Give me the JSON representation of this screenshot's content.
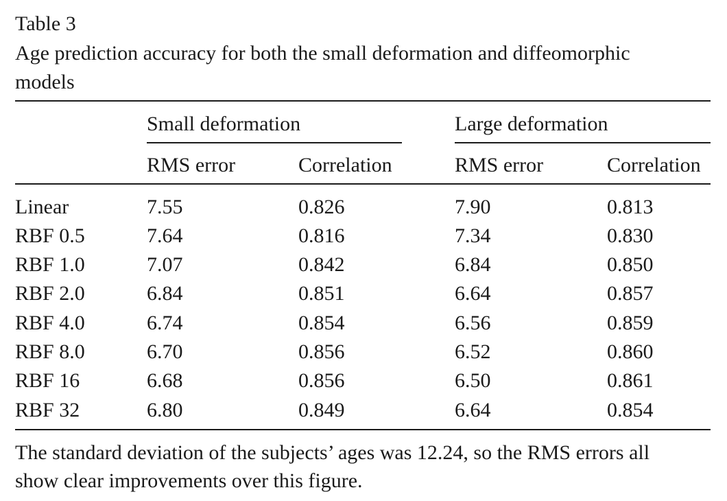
{
  "caption": {
    "label": "Table 3",
    "title_line1": "Age prediction accuracy for both the small deformation and diffeomorphic",
    "title_line2": "models"
  },
  "table": {
    "groups": [
      {
        "label": "Small deformation"
      },
      {
        "label": "Large deformation"
      }
    ],
    "columns": [
      "RMS error",
      "Correlation",
      "RMS error",
      "Correlation"
    ],
    "rows": [
      {
        "label": "Linear",
        "values": [
          "7.55",
          "0.826",
          "7.90",
          "0.813"
        ]
      },
      {
        "label": "RBF 0.5",
        "values": [
          "7.64",
          "0.816",
          "7.34",
          "0.830"
        ]
      },
      {
        "label": "RBF 1.0",
        "values": [
          "7.07",
          "0.842",
          "6.84",
          "0.850"
        ]
      },
      {
        "label": "RBF 2.0",
        "values": [
          "6.84",
          "0.851",
          "6.64",
          "0.857"
        ]
      },
      {
        "label": "RBF 4.0",
        "values": [
          "6.74",
          "0.854",
          "6.56",
          "0.859"
        ]
      },
      {
        "label": "RBF 8.0",
        "values": [
          "6.70",
          "0.856",
          "6.52",
          "0.860"
        ]
      },
      {
        "label": "RBF 16",
        "values": [
          "6.68",
          "0.856",
          "6.50",
          "0.861"
        ]
      },
      {
        "label": "RBF 32",
        "values": [
          "6.80",
          "0.849",
          "6.64",
          "0.854"
        ]
      }
    ]
  },
  "footnote": {
    "line1": "The standard deviation of the subjects’ ages was 12.24, so the RMS errors all",
    "line2": "show clear improvements over this figure."
  }
}
